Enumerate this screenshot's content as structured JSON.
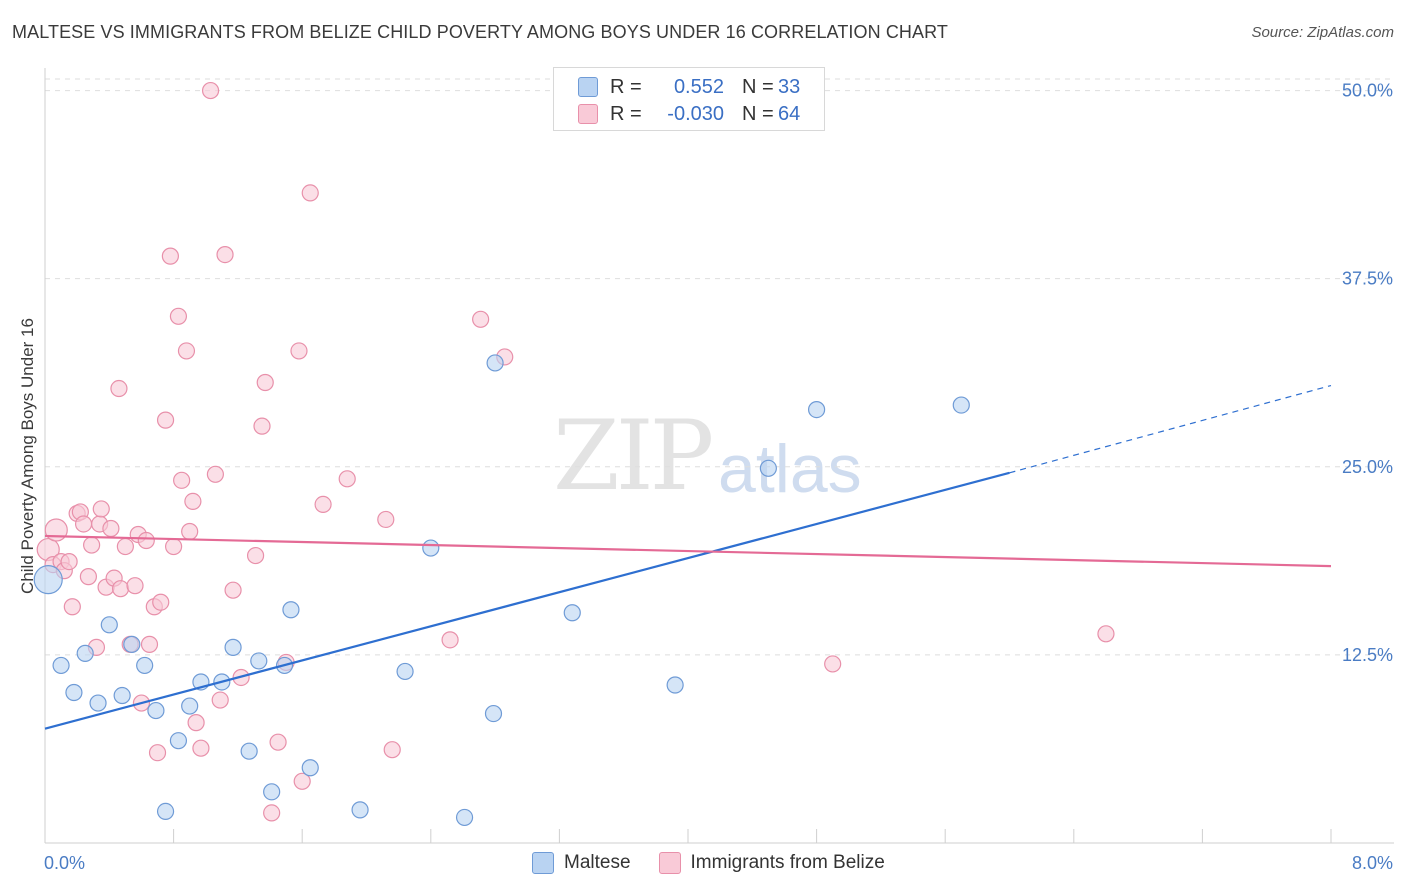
{
  "title": "MALTESE VS IMMIGRANTS FROM BELIZE CHILD POVERTY AMONG BOYS UNDER 16 CORRELATION CHART",
  "source": "Source: ZipAtlas.com",
  "watermark": {
    "zip": "ZIP",
    "atlas": "atlas"
  },
  "legend": {
    "rows": [
      {
        "r_label": "R =",
        "r_value": "0.552",
        "n_label": "N =",
        "n_value": "33",
        "color": "#a8c8f0",
        "border": "#6f9bd6"
      },
      {
        "r_label": "R =",
        "r_value": "-0.030",
        "n_label": "N =",
        "n_value": "64",
        "color": "#f8c0d0",
        "border": "#e890aa"
      }
    ]
  },
  "bottom_legend": {
    "maltese": "Maltese",
    "belize": "Immigrants from Belize"
  },
  "colors": {
    "maltese_fill": "#b9d3f2",
    "maltese_stroke": "#6f9bd6",
    "maltese_line": "#2e6fd0",
    "belize_fill": "#f9cad7",
    "belize_stroke": "#e890aa",
    "belize_line": "#e46a95",
    "grid": "#dedede",
    "axis_text": "#4a7cc4"
  },
  "chart_data": {
    "type": "scatter",
    "title": "MALTESE VS IMMIGRANTS FROM BELIZE CHILD POVERTY AMONG BOYS UNDER 16 CORRELATION CHART",
    "xlabel": "",
    "ylabel": "Child Poverty Among Boys Under 16",
    "xlim": [
      0,
      8.0
    ],
    "ylim": [
      0,
      51.5
    ],
    "x_tick_labels": [
      "0.0%",
      "8.0%"
    ],
    "y_ticks": [
      12.5,
      25.0,
      37.5,
      50.0
    ],
    "y_tick_labels": [
      "12.5%",
      "25.0%",
      "37.5%",
      "50.0%"
    ],
    "series": [
      {
        "name": "Maltese",
        "r": 0.552,
        "n": 33,
        "trend": {
          "x0": 0.0,
          "y0": 7.6,
          "x1": 6.0,
          "y1": 24.6,
          "dash_to_x": 8.0,
          "dash_to_y": 30.4
        },
        "points": [
          {
            "x": 0.02,
            "y": 17.5
          },
          {
            "x": 0.1,
            "y": 11.8
          },
          {
            "x": 0.18,
            "y": 10.0
          },
          {
            "x": 0.25,
            "y": 12.6
          },
          {
            "x": 0.33,
            "y": 9.3
          },
          {
            "x": 0.4,
            "y": 14.5
          },
          {
            "x": 0.48,
            "y": 9.8
          },
          {
            "x": 0.54,
            "y": 13.2
          },
          {
            "x": 0.62,
            "y": 11.8
          },
          {
            "x": 0.69,
            "y": 8.8
          },
          {
            "x": 0.75,
            "y": 2.1
          },
          {
            "x": 0.83,
            "y": 6.8
          },
          {
            "x": 0.9,
            "y": 9.1
          },
          {
            "x": 0.97,
            "y": 10.7
          },
          {
            "x": 1.1,
            "y": 10.7
          },
          {
            "x": 1.17,
            "y": 13.0
          },
          {
            "x": 1.27,
            "y": 6.1
          },
          {
            "x": 1.33,
            "y": 12.1
          },
          {
            "x": 1.41,
            "y": 3.4
          },
          {
            "x": 1.49,
            "y": 11.8
          },
          {
            "x": 1.53,
            "y": 15.5
          },
          {
            "x": 1.65,
            "y": 5.0
          },
          {
            "x": 1.96,
            "y": 2.2
          },
          {
            "x": 2.24,
            "y": 11.4
          },
          {
            "x": 2.4,
            "y": 19.6
          },
          {
            "x": 2.61,
            "y": 1.7
          },
          {
            "x": 2.79,
            "y": 8.6
          },
          {
            "x": 2.8,
            "y": 31.9
          },
          {
            "x": 3.28,
            "y": 15.3
          },
          {
            "x": 3.92,
            "y": 10.5
          },
          {
            "x": 4.5,
            "y": 24.9
          },
          {
            "x": 4.8,
            "y": 28.8
          },
          {
            "x": 5.7,
            "y": 29.1
          }
        ]
      },
      {
        "name": "Immigrants from Belize",
        "r": -0.03,
        "n": 64,
        "trend": {
          "x0": 0.0,
          "y0": 20.4,
          "x1": 8.0,
          "y1": 18.4
        },
        "points": [
          {
            "x": 0.02,
            "y": 19.5
          },
          {
            "x": 0.05,
            "y": 18.5
          },
          {
            "x": 0.07,
            "y": 20.8
          },
          {
            "x": 0.1,
            "y": 18.7
          },
          {
            "x": 0.12,
            "y": 18.1
          },
          {
            "x": 0.15,
            "y": 18.7
          },
          {
            "x": 0.17,
            "y": 15.7
          },
          {
            "x": 0.2,
            "y": 21.9
          },
          {
            "x": 0.22,
            "y": 22.0
          },
          {
            "x": 0.24,
            "y": 21.2
          },
          {
            "x": 0.27,
            "y": 17.7
          },
          {
            "x": 0.29,
            "y": 19.8
          },
          {
            "x": 0.32,
            "y": 13.0
          },
          {
            "x": 0.34,
            "y": 21.2
          },
          {
            "x": 0.35,
            "y": 22.2
          },
          {
            "x": 0.38,
            "y": 17.0
          },
          {
            "x": 0.41,
            "y": 20.9
          },
          {
            "x": 0.43,
            "y": 17.6
          },
          {
            "x": 0.46,
            "y": 30.2
          },
          {
            "x": 0.47,
            "y": 16.9
          },
          {
            "x": 0.5,
            "y": 19.7
          },
          {
            "x": 0.53,
            "y": 13.2
          },
          {
            "x": 0.56,
            "y": 17.1
          },
          {
            "x": 0.58,
            "y": 20.5
          },
          {
            "x": 0.6,
            "y": 9.3
          },
          {
            "x": 0.63,
            "y": 20.1
          },
          {
            "x": 0.65,
            "y": 13.2
          },
          {
            "x": 0.68,
            "y": 15.7
          },
          {
            "x": 0.7,
            "y": 6.0
          },
          {
            "x": 0.72,
            "y": 16.0
          },
          {
            "x": 0.75,
            "y": 28.1
          },
          {
            "x": 0.78,
            "y": 39.0
          },
          {
            "x": 0.8,
            "y": 19.7
          },
          {
            "x": 0.83,
            "y": 35.0
          },
          {
            "x": 0.85,
            "y": 24.1
          },
          {
            "x": 0.88,
            "y": 32.7
          },
          {
            "x": 0.9,
            "y": 20.7
          },
          {
            "x": 0.92,
            "y": 22.7
          },
          {
            "x": 0.94,
            "y": 8.0
          },
          {
            "x": 0.97,
            "y": 6.3
          },
          {
            "x": 1.03,
            "y": 50.0
          },
          {
            "x": 1.06,
            "y": 24.5
          },
          {
            "x": 1.09,
            "y": 9.5
          },
          {
            "x": 1.12,
            "y": 39.1
          },
          {
            "x": 1.17,
            "y": 16.8
          },
          {
            "x": 1.22,
            "y": 11.0
          },
          {
            "x": 1.31,
            "y": 19.1
          },
          {
            "x": 1.35,
            "y": 27.7
          },
          {
            "x": 1.37,
            "y": 30.6
          },
          {
            "x": 1.41,
            "y": 2.0
          },
          {
            "x": 1.45,
            "y": 6.7
          },
          {
            "x": 1.5,
            "y": 12.0
          },
          {
            "x": 1.58,
            "y": 32.7
          },
          {
            "x": 1.6,
            "y": 4.1
          },
          {
            "x": 1.65,
            "y": 43.2
          },
          {
            "x": 1.73,
            "y": 22.5
          },
          {
            "x": 1.88,
            "y": 24.2
          },
          {
            "x": 2.12,
            "y": 21.5
          },
          {
            "x": 2.16,
            "y": 6.2
          },
          {
            "x": 2.52,
            "y": 13.5
          },
          {
            "x": 2.71,
            "y": 34.8
          },
          {
            "x": 2.86,
            "y": 32.3
          },
          {
            "x": 4.9,
            "y": 11.9
          },
          {
            "x": 6.6,
            "y": 13.9
          }
        ]
      }
    ]
  }
}
